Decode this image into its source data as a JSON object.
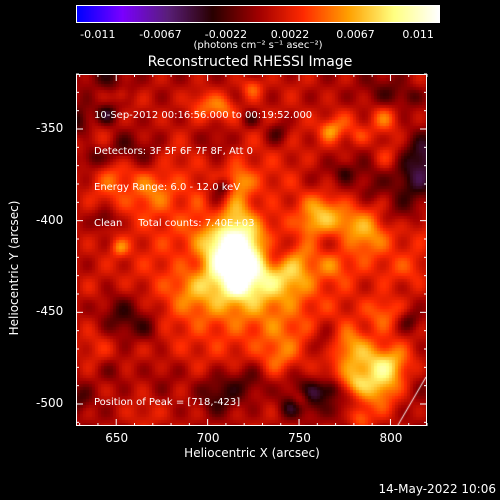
{
  "colorbar": {
    "ticks": [
      "-0.011",
      "-0.0067",
      "-0.0022",
      "0.0022",
      "0.0067",
      "0.011"
    ],
    "tick_values": [
      -0.011,
      -0.0067,
      -0.0022,
      0.0022,
      0.0067,
      0.011
    ],
    "units": "(photons cm⁻² s⁻¹ asec⁻²)",
    "range": [
      -0.0125,
      0.0125
    ],
    "colors": [
      "#0000ff",
      "#7b00ff",
      "#5a1f7a",
      "#2a0000",
      "#a00000",
      "#ff2a00",
      "#ffa000",
      "#ffff80",
      "#ffffff"
    ]
  },
  "annotation_lines": [
    "10-Sep-2012 00:16:56.000 to 00:19:52.000",
    "Detectors: 3F 5F 6F 7F 8F, Att 0",
    "Energy Range: 6.0 - 12.0 keV",
    "Clean     Total counts: 7.40E+03"
  ],
  "peak_label": "Position of Peak = [718,-423]",
  "date_stamp": "14-May-2022 10:06",
  "chart_data": {
    "type": "heatmap",
    "title": "Reconstructed RHESSI Image",
    "xlabel": "Heliocentric X (arcsec)",
    "ylabel": "Heliocentric Y (arcsec)",
    "x_ticks": [
      "650",
      "700",
      "750",
      "800"
    ],
    "x_tick_values": [
      650,
      700,
      750,
      800
    ],
    "y_ticks": [
      "-350",
      "-400",
      "-450",
      "-500"
    ],
    "y_tick_values": [
      -350,
      -400,
      -450,
      -500
    ],
    "xlim": [
      628,
      820
    ],
    "ylim": [
      -512,
      -320
    ],
    "peak": {
      "x": 718,
      "y": -423
    },
    "value_range": [
      -0.011,
      0.011
    ],
    "colormap": "blue-purple-black-red-yellow-white"
  }
}
